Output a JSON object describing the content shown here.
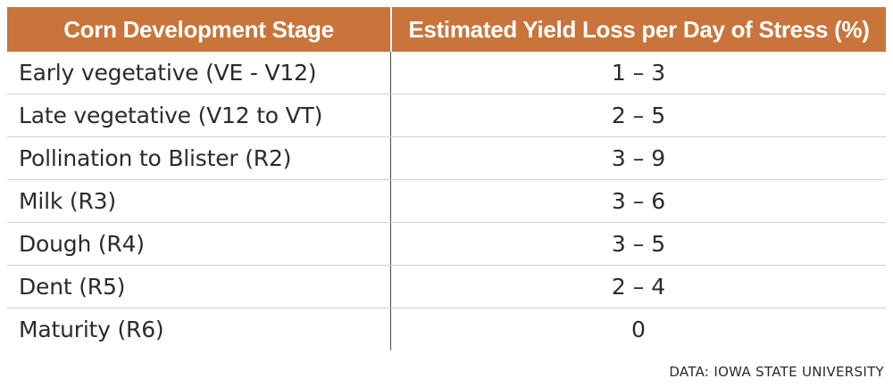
{
  "chart_data": {
    "type": "table",
    "columns": [
      "Corn Development Stage",
      "Estimated Yield Loss per Day of Stress (%)"
    ],
    "rows": [
      [
        "Early vegetative (VE - V12)",
        "1 – 3"
      ],
      [
        "Late vegetative (V12 to VT)",
        "2 – 5"
      ],
      [
        "Pollination to Blister (R2)",
        "3 – 9"
      ],
      [
        "Milk (R3)",
        "3 – 6"
      ],
      [
        "Dough (R4)",
        "3 – 5"
      ],
      [
        "Dent (R5)",
        "2 – 4"
      ],
      [
        "Maturity (R6)",
        "0"
      ]
    ],
    "source": "DATA: IOWA STATE UNIVERSITY",
    "header_color": "#c8743a"
  }
}
